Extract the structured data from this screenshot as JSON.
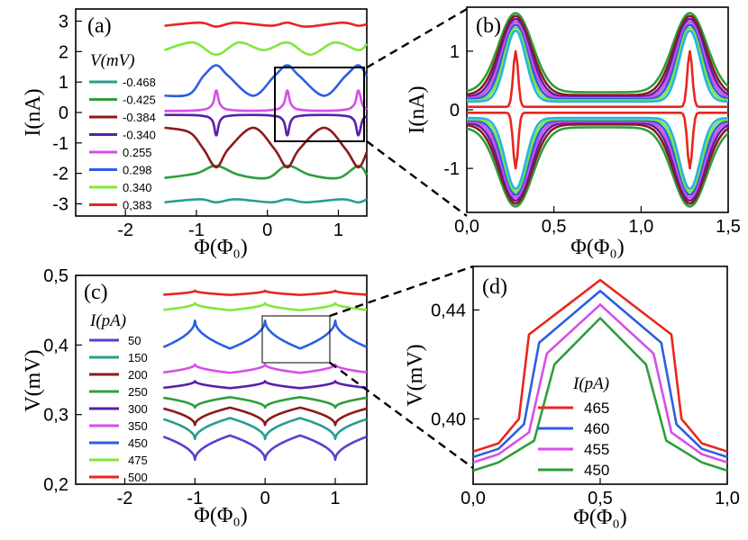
{
  "chart_data": [
    {
      "panel": "(a)",
      "type": "line",
      "xlabel": "Φ(Φ₀)",
      "ylabel": "I(nA)",
      "xlim": [
        -2.7,
        1.4
      ],
      "ylim": [
        -3.4,
        3.4
      ],
      "xticks": [
        -2,
        -1,
        0,
        1
      ],
      "yticks": [
        -3,
        -2,
        -1,
        0,
        1,
        2,
        3
      ],
      "legend_title": "V(mV)",
      "legend_placement": "left",
      "series": [
        {
          "name": "-0.468",
          "color": "#2a9d8f",
          "x": [
            -1.45,
            -0.95,
            -0.72,
            -0.45,
            0.05,
            0.28,
            0.55,
            1.05,
            1.28,
            1.4
          ],
          "y": [
            -2.95,
            -2.85,
            -2.95,
            -2.85,
            -2.95,
            -2.85,
            -2.95,
            -2.85,
            -2.95,
            -2.85
          ]
        },
        {
          "name": "-0.425",
          "color": "#2e9e3b",
          "x": [
            -1.45,
            -1.0,
            -0.72,
            -0.4,
            0.0,
            0.28,
            0.6,
            1.0,
            1.28,
            1.4
          ],
          "y": [
            -2.15,
            -2.0,
            -1.75,
            -2.05,
            -2.15,
            -1.75,
            -2.05,
            -2.15,
            -1.75,
            -2.05
          ]
        },
        {
          "name": "-0.384",
          "color": "#8b1a1a",
          "x": [
            -1.45,
            -1.1,
            -0.9,
            -0.72,
            -0.55,
            -0.2,
            0.1,
            0.28,
            0.45,
            0.8,
            1.1,
            1.28,
            1.4
          ],
          "y": [
            -0.5,
            -0.65,
            -1.2,
            -1.8,
            -1.2,
            -0.5,
            -1.2,
            -1.8,
            -1.2,
            -0.5,
            -1.2,
            -1.8,
            -1.3
          ]
        },
        {
          "name": "-0.340",
          "color": "#5a1fa8",
          "x": [
            -1.45,
            -0.95,
            -0.78,
            -0.72,
            -0.66,
            -0.5,
            0.05,
            0.22,
            0.28,
            0.34,
            0.5,
            1.05,
            1.22,
            1.28,
            1.34,
            1.4
          ],
          "y": [
            -0.08,
            -0.1,
            -0.25,
            -0.75,
            -0.25,
            -0.1,
            -0.1,
            -0.25,
            -0.75,
            -0.25,
            -0.1,
            -0.1,
            -0.25,
            -0.75,
            -0.25,
            -0.12
          ]
        },
        {
          "name": "0.255",
          "color": "#d64ee8",
          "x": [
            -1.45,
            -0.95,
            -0.78,
            -0.72,
            -0.66,
            -0.5,
            0.05,
            0.22,
            0.28,
            0.34,
            0.5,
            1.05,
            1.22,
            1.28,
            1.34,
            1.4
          ],
          "y": [
            0.05,
            0.08,
            0.25,
            0.72,
            0.25,
            0.08,
            0.08,
            0.25,
            0.72,
            0.25,
            0.08,
            0.08,
            0.25,
            0.72,
            0.25,
            0.1
          ]
        },
        {
          "name": "0.298",
          "color": "#2c5fe0",
          "x": [
            -1.45,
            -1.1,
            -0.9,
            -0.72,
            -0.55,
            -0.2,
            0.1,
            0.28,
            0.45,
            0.8,
            1.1,
            1.28,
            1.4
          ],
          "y": [
            0.55,
            0.6,
            1.2,
            1.55,
            1.2,
            0.55,
            1.2,
            1.55,
            1.2,
            0.55,
            1.2,
            1.55,
            1.2
          ]
        },
        {
          "name": "0.340",
          "color": "#7fe83a",
          "x": [
            -1.45,
            -1.05,
            -0.72,
            -0.4,
            -0.05,
            0.28,
            0.6,
            0.95,
            1.28,
            1.4
          ],
          "y": [
            2.05,
            2.3,
            1.9,
            2.3,
            2.05,
            2.3,
            1.9,
            2.3,
            2.05,
            2.25
          ]
        },
        {
          "name": "0,383",
          "color": "#e8261e",
          "x": [
            -1.45,
            -0.95,
            -0.72,
            -0.45,
            0.05,
            0.28,
            0.55,
            1.05,
            1.28,
            1.4
          ],
          "y": [
            2.85,
            2.95,
            2.82,
            2.95,
            2.85,
            2.95,
            2.82,
            2.95,
            2.85,
            2.9
          ]
        }
      ]
    },
    {
      "panel": "(b)",
      "type": "line",
      "xlabel": "Φ(Φ₀)",
      "ylabel": "I(nA)",
      "xlim": [
        0.0,
        1.5
      ],
      "ylim": [
        -1.75,
        1.75
      ],
      "xticks": [
        "0,0",
        "0,5",
        "1,0",
        "1,5"
      ],
      "yticks": [
        -1,
        0,
        1
      ],
      "series": [
        {
          "name": "green-outer",
          "color": "#2e9e3b",
          "peak": 1.65,
          "base": 0.3
        },
        {
          "name": "dark-red",
          "color": "#8b1a1a",
          "peak": 1.6,
          "base": 0.25
        },
        {
          "name": "purple",
          "color": "#5a1fa8",
          "peak": 1.55,
          "base": 0.22
        },
        {
          "name": "magenta",
          "color": "#d64ee8",
          "peak": 1.5,
          "base": 0.2
        },
        {
          "name": "blue",
          "color": "#2c5fe0",
          "peak": 1.45,
          "base": 0.18
        },
        {
          "name": "light-green",
          "color": "#7fe83a",
          "peak": 1.4,
          "base": 0.16
        },
        {
          "name": "cyan",
          "color": "#29b5e0",
          "peak": 1.35,
          "base": 0.14
        },
        {
          "name": "red-inner",
          "color": "#e8261e",
          "peak": 1.0,
          "base": 0.05
        }
      ]
    },
    {
      "panel": "(c)",
      "type": "line",
      "xlabel": "Φ(Φ₀)",
      "ylabel": "V(mV)",
      "xlim": [
        -2.7,
        1.45
      ],
      "ylim": [
        0.2,
        0.5
      ],
      "xticks": [
        -2,
        -1,
        0,
        1
      ],
      "yticks": [
        "0,2",
        "0,3",
        "0,4",
        "0,5"
      ],
      "legend_title": "I(pA)",
      "legend_placement": "left",
      "series": [
        {
          "name": "50",
          "color": "#5a3fd0"
        },
        {
          "name": "150",
          "color": "#2a9d8f"
        },
        {
          "name": "200",
          "color": "#8b1a1a"
        },
        {
          "name": "250",
          "color": "#2e9e3b"
        },
        {
          "name": "300",
          "color": "#5a1fa8"
        },
        {
          "name": "350",
          "color": "#d64ee8"
        },
        {
          "name": "450",
          "color": "#2c5fe0"
        },
        {
          "name": "475",
          "color": "#7fe83a"
        },
        {
          "name": "500",
          "color": "#e8261e"
        }
      ]
    },
    {
      "panel": "(d)",
      "type": "line",
      "xlabel": "Φ(Φ₀)",
      "ylabel": "V(mV)",
      "xlim": [
        0.0,
        1.0
      ],
      "ylim": [
        0.376,
        0.456
      ],
      "xticks": [
        "0,0",
        "0,5",
        "1,0"
      ],
      "yticks": [
        "0,40",
        "0,44"
      ],
      "legend_title": "I(pA)",
      "legend_placement": "center",
      "series": [
        {
          "name": "465",
          "color": "#e8261e",
          "x": [
            0.0,
            0.1,
            0.18,
            0.22,
            0.5,
            0.78,
            0.82,
            0.9,
            1.0
          ],
          "y": [
            0.388,
            0.391,
            0.4,
            0.431,
            0.451,
            0.431,
            0.4,
            0.391,
            0.388
          ]
        },
        {
          "name": "460",
          "color": "#2c5fe0",
          "x": [
            0.0,
            0.1,
            0.2,
            0.26,
            0.5,
            0.74,
            0.8,
            0.9,
            1.0
          ],
          "y": [
            0.386,
            0.389,
            0.398,
            0.428,
            0.447,
            0.428,
            0.398,
            0.389,
            0.386
          ]
        },
        {
          "name": "455",
          "color": "#d64ee8",
          "x": [
            0.0,
            0.1,
            0.22,
            0.29,
            0.5,
            0.71,
            0.78,
            0.9,
            1.0
          ],
          "y": [
            0.384,
            0.387,
            0.395,
            0.424,
            0.442,
            0.424,
            0.395,
            0.387,
            0.384
          ]
        },
        {
          "name": "450",
          "color": "#2e9e3b",
          "x": [
            0.0,
            0.1,
            0.24,
            0.32,
            0.5,
            0.68,
            0.76,
            0.9,
            1.0
          ],
          "y": [
            0.381,
            0.384,
            0.392,
            0.42,
            0.437,
            0.42,
            0.392,
            0.384,
            0.381
          ]
        }
      ]
    }
  ]
}
